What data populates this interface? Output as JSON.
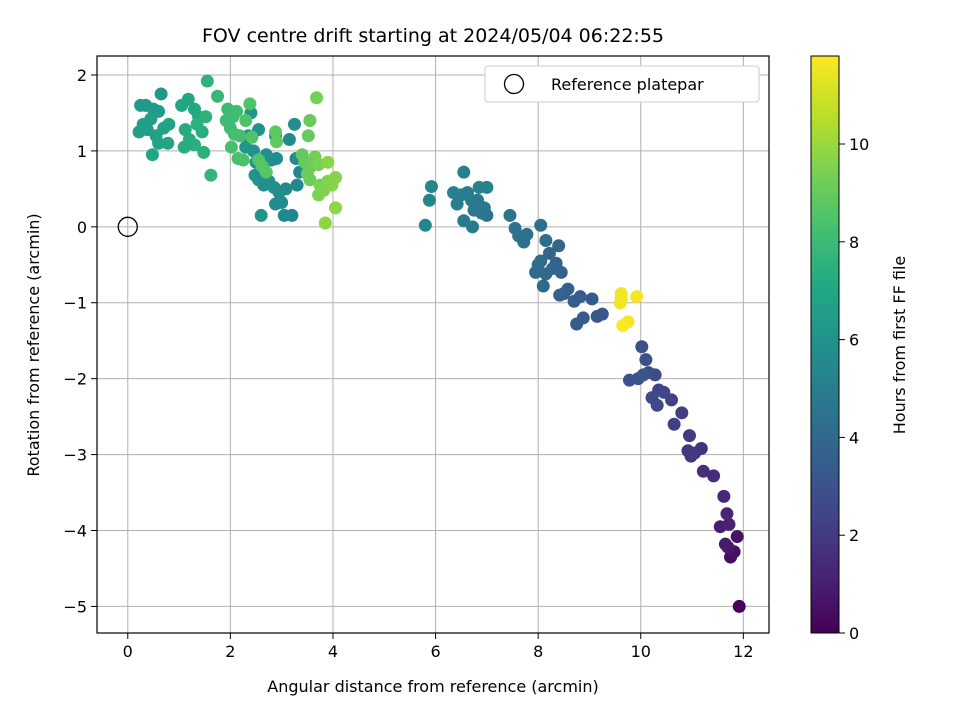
{
  "chart_data": {
    "type": "scatter",
    "title": "FOV centre drift starting at 2024/05/04 06:22:55",
    "xlabel": "Angular distance from reference (arcmin)",
    "ylabel": "Rotation from reference (arcmin)",
    "xlim": [
      -0.6,
      12.5
    ],
    "ylim": [
      -5.35,
      2.25
    ],
    "x_ticks": [
      0,
      2,
      4,
      6,
      8,
      10,
      12
    ],
    "y_ticks": [
      2,
      1,
      0,
      -1,
      -2,
      -3,
      -4,
      -5
    ],
    "x_tick_labels": [
      "0",
      "2",
      "4",
      "6",
      "8",
      "10",
      "12"
    ],
    "y_tick_labels": [
      "2",
      "1",
      "0",
      "−1",
      "−2",
      "−3",
      "−4",
      "−5"
    ],
    "grid": true,
    "legend": {
      "label": "Reference platepar",
      "position": "top-right"
    },
    "reference_point": {
      "x": 0,
      "y": 0
    },
    "colorbar": {
      "label": "Hours from first FF file",
      "range": [
        0,
        11.8
      ],
      "ticks": [
        0,
        2,
        4,
        6,
        8,
        10
      ],
      "tick_labels": [
        "0",
        "2",
        "4",
        "6",
        "8",
        "10"
      ],
      "colormap": "viridis"
    },
    "series": [
      {
        "points": [
          [
            11.92,
            -5.0,
            0.1
          ],
          [
            11.75,
            -4.35,
            0.4
          ],
          [
            11.88,
            -4.08,
            0.6
          ],
          [
            11.82,
            -4.28,
            0.5
          ],
          [
            11.7,
            -4.22,
            0.8
          ],
          [
            11.65,
            -4.18,
            0.9
          ],
          [
            11.55,
            -3.95,
            1.0
          ],
          [
            11.72,
            -3.92,
            1.1
          ],
          [
            11.68,
            -3.78,
            1.2
          ],
          [
            11.62,
            -3.55,
            1.3
          ],
          [
            11.42,
            -3.28,
            1.5
          ],
          [
            11.22,
            -3.22,
            1.6
          ],
          [
            11.18,
            -2.92,
            1.7
          ],
          [
            11.05,
            -2.98,
            1.8
          ],
          [
            10.92,
            -2.95,
            1.9
          ],
          [
            10.98,
            -3.02,
            1.95
          ],
          [
            10.95,
            -2.75,
            2.0
          ],
          [
            10.8,
            -2.45,
            2.1
          ],
          [
            10.65,
            -2.6,
            2.2
          ],
          [
            10.6,
            -2.28,
            2.3
          ],
          [
            10.45,
            -2.18,
            2.4
          ],
          [
            10.35,
            -2.15,
            2.5
          ],
          [
            10.32,
            -2.35,
            2.55
          ],
          [
            10.22,
            -2.25,
            2.6
          ],
          [
            10.28,
            -1.95,
            2.7
          ],
          [
            10.15,
            -1.92,
            2.8
          ],
          [
            10.1,
            -1.75,
            2.85
          ],
          [
            10.02,
            -1.58,
            2.9
          ],
          [
            9.95,
            -2.0,
            3.0
          ],
          [
            9.78,
            -2.02,
            3.05
          ],
          [
            10.05,
            -1.95,
            3.1
          ],
          [
            9.25,
            -1.15,
            3.2
          ],
          [
            9.15,
            -1.18,
            3.25
          ],
          [
            9.05,
            -0.95,
            3.3
          ],
          [
            8.88,
            -1.2,
            3.35
          ],
          [
            8.75,
            -1.28,
            3.4
          ],
          [
            8.82,
            -0.92,
            3.45
          ],
          [
            8.7,
            -0.98,
            3.5
          ],
          [
            8.58,
            -0.82,
            3.55
          ],
          [
            8.5,
            -0.88,
            3.6
          ],
          [
            8.42,
            -0.9,
            3.65
          ],
          [
            8.45,
            -0.6,
            3.7
          ],
          [
            8.35,
            -0.48,
            3.75
          ],
          [
            8.28,
            -0.55,
            3.8
          ],
          [
            8.4,
            -0.25,
            3.85
          ],
          [
            8.22,
            -0.35,
            3.9
          ],
          [
            8.15,
            -0.62,
            3.95
          ],
          [
            8.1,
            -0.78,
            4.0
          ],
          [
            8.05,
            -0.45,
            4.05
          ],
          [
            7.95,
            -0.6,
            4.1
          ],
          [
            8.0,
            -0.5,
            4.15
          ],
          [
            8.15,
            -0.18,
            4.2
          ],
          [
            8.05,
            0.02,
            4.25
          ],
          [
            7.78,
            -0.1,
            4.3
          ],
          [
            7.72,
            -0.2,
            4.35
          ],
          [
            7.62,
            -0.12,
            4.4
          ],
          [
            7.55,
            -0.02,
            4.45
          ],
          [
            7.45,
            0.15,
            4.5
          ],
          [
            7.0,
            0.15,
            4.55
          ],
          [
            6.95,
            0.25,
            4.6
          ],
          [
            6.9,
            0.18,
            4.65
          ],
          [
            6.82,
            0.35,
            4.7
          ],
          [
            6.75,
            0.22,
            4.75
          ],
          [
            6.72,
            0.0,
            4.8
          ],
          [
            6.55,
            0.08,
            4.85
          ],
          [
            6.7,
            0.35,
            4.9
          ],
          [
            6.62,
            0.45,
            4.95
          ],
          [
            6.5,
            0.42,
            5.0
          ],
          [
            6.42,
            0.3,
            5.05
          ],
          [
            6.35,
            0.45,
            5.1
          ],
          [
            6.55,
            0.72,
            5.15
          ],
          [
            6.85,
            0.52,
            5.2
          ],
          [
            7.0,
            0.52,
            5.25
          ],
          [
            5.92,
            0.53,
            5.3
          ],
          [
            5.88,
            0.35,
            5.35
          ],
          [
            5.8,
            0.02,
            5.4
          ],
          [
            3.2,
            0.15,
            5.45
          ],
          [
            3.05,
            0.15,
            5.5
          ],
          [
            3.0,
            0.32,
            5.55
          ],
          [
            3.08,
            0.5,
            5.6
          ],
          [
            2.88,
            0.3,
            5.65
          ],
          [
            2.95,
            0.45,
            5.7
          ],
          [
            2.85,
            0.52,
            5.75
          ],
          [
            2.75,
            0.6,
            5.8
          ],
          [
            2.65,
            0.55,
            5.85
          ],
          [
            2.55,
            0.62,
            5.9
          ],
          [
            2.48,
            0.68,
            5.95
          ],
          [
            2.6,
            0.15,
            6.0
          ],
          [
            3.3,
            0.55,
            5.45
          ],
          [
            3.35,
            0.72,
            5.5
          ],
          [
            3.28,
            0.9,
            5.55
          ],
          [
            3.15,
            1.15,
            5.6
          ],
          [
            3.25,
            1.35,
            5.65
          ],
          [
            2.88,
            1.2,
            5.7
          ],
          [
            2.9,
            0.9,
            5.75
          ],
          [
            2.8,
            0.88,
            5.8
          ],
          [
            2.7,
            0.95,
            5.85
          ],
          [
            2.5,
            0.85,
            5.9
          ],
          [
            2.45,
            1.0,
            5.95
          ],
          [
            2.55,
            1.28,
            6.0
          ],
          [
            2.4,
            1.5,
            6.05
          ],
          [
            2.3,
            1.05,
            6.1
          ],
          [
            2.35,
            1.2,
            6.1
          ],
          [
            0.65,
            1.75,
            6.2
          ],
          [
            0.35,
            1.6,
            6.3
          ],
          [
            0.5,
            1.55,
            6.35
          ],
          [
            0.25,
            1.6,
            6.4
          ],
          [
            0.6,
            1.52,
            6.45
          ],
          [
            0.45,
            1.42,
            6.5
          ],
          [
            0.3,
            1.35,
            6.55
          ],
          [
            0.38,
            1.28,
            6.6
          ],
          [
            0.22,
            1.25,
            6.65
          ],
          [
            0.55,
            1.2,
            6.7
          ],
          [
            0.7,
            1.3,
            6.75
          ],
          [
            0.8,
            1.35,
            6.8
          ],
          [
            0.6,
            1.1,
            6.85
          ],
          [
            0.78,
            1.1,
            6.9
          ],
          [
            0.48,
            0.95,
            6.95
          ],
          [
            1.05,
            1.6,
            7.0
          ],
          [
            1.18,
            1.68,
            7.05
          ],
          [
            1.3,
            1.55,
            7.1
          ],
          [
            1.38,
            1.45,
            7.15
          ],
          [
            1.12,
            1.28,
            7.2
          ],
          [
            1.2,
            1.15,
            7.25
          ],
          [
            1.1,
            1.05,
            7.3
          ],
          [
            1.3,
            1.08,
            7.35
          ],
          [
            1.45,
            1.25,
            7.4
          ],
          [
            1.35,
            1.35,
            7.45
          ],
          [
            1.48,
            0.98,
            7.5
          ],
          [
            1.52,
            1.45,
            7.55
          ],
          [
            1.55,
            1.92,
            7.6
          ],
          [
            1.62,
            0.68,
            7.7
          ],
          [
            1.75,
            1.72,
            7.8
          ],
          [
            1.95,
            1.55,
            7.9
          ],
          [
            1.92,
            1.4,
            8.0
          ],
          [
            2.05,
            1.45,
            8.05
          ],
          [
            2.0,
            1.3,
            8.1
          ],
          [
            2.12,
            1.52,
            8.15
          ],
          [
            2.18,
            1.2,
            8.2
          ],
          [
            2.08,
            1.22,
            8.25
          ],
          [
            2.02,
            1.05,
            8.3
          ],
          [
            2.15,
            0.9,
            8.35
          ],
          [
            2.25,
            0.88,
            8.4
          ],
          [
            2.3,
            1.4,
            8.45
          ],
          [
            2.38,
            1.62,
            8.5
          ],
          [
            2.42,
            1.18,
            8.55
          ],
          [
            2.55,
            0.88,
            8.6
          ],
          [
            2.62,
            0.8,
            8.65
          ],
          [
            2.7,
            0.72,
            8.7
          ],
          [
            2.88,
            1.25,
            8.8
          ],
          [
            2.9,
            1.12,
            8.85
          ],
          [
            3.4,
            0.95,
            8.9
          ],
          [
            3.45,
            0.85,
            8.95
          ],
          [
            3.52,
            1.2,
            9.0
          ],
          [
            3.55,
            1.4,
            9.05
          ],
          [
            3.5,
            0.7,
            9.1
          ],
          [
            3.55,
            0.62,
            9.15
          ],
          [
            3.58,
            0.8,
            9.2
          ],
          [
            3.65,
            0.92,
            9.25
          ],
          [
            3.68,
            1.7,
            9.3
          ],
          [
            3.72,
            0.82,
            9.35
          ],
          [
            3.75,
            0.55,
            9.4
          ],
          [
            3.72,
            0.42,
            9.45
          ],
          [
            3.82,
            0.48,
            9.5
          ],
          [
            3.9,
            0.6,
            9.55
          ],
          [
            3.98,
            0.55,
            9.6
          ],
          [
            4.05,
            0.65,
            9.65
          ],
          [
            3.9,
            0.85,
            9.7
          ],
          [
            4.05,
            0.25,
            9.75
          ],
          [
            3.85,
            0.05,
            9.8
          ],
          [
            9.62,
            -0.88,
            11.5
          ],
          [
            9.6,
            -1.0,
            11.55
          ],
          [
            9.62,
            -0.95,
            11.6
          ],
          [
            9.92,
            -0.92,
            11.65
          ],
          [
            9.75,
            -1.25,
            11.7
          ],
          [
            9.65,
            -1.3,
            11.75
          ]
        ]
      }
    ]
  }
}
